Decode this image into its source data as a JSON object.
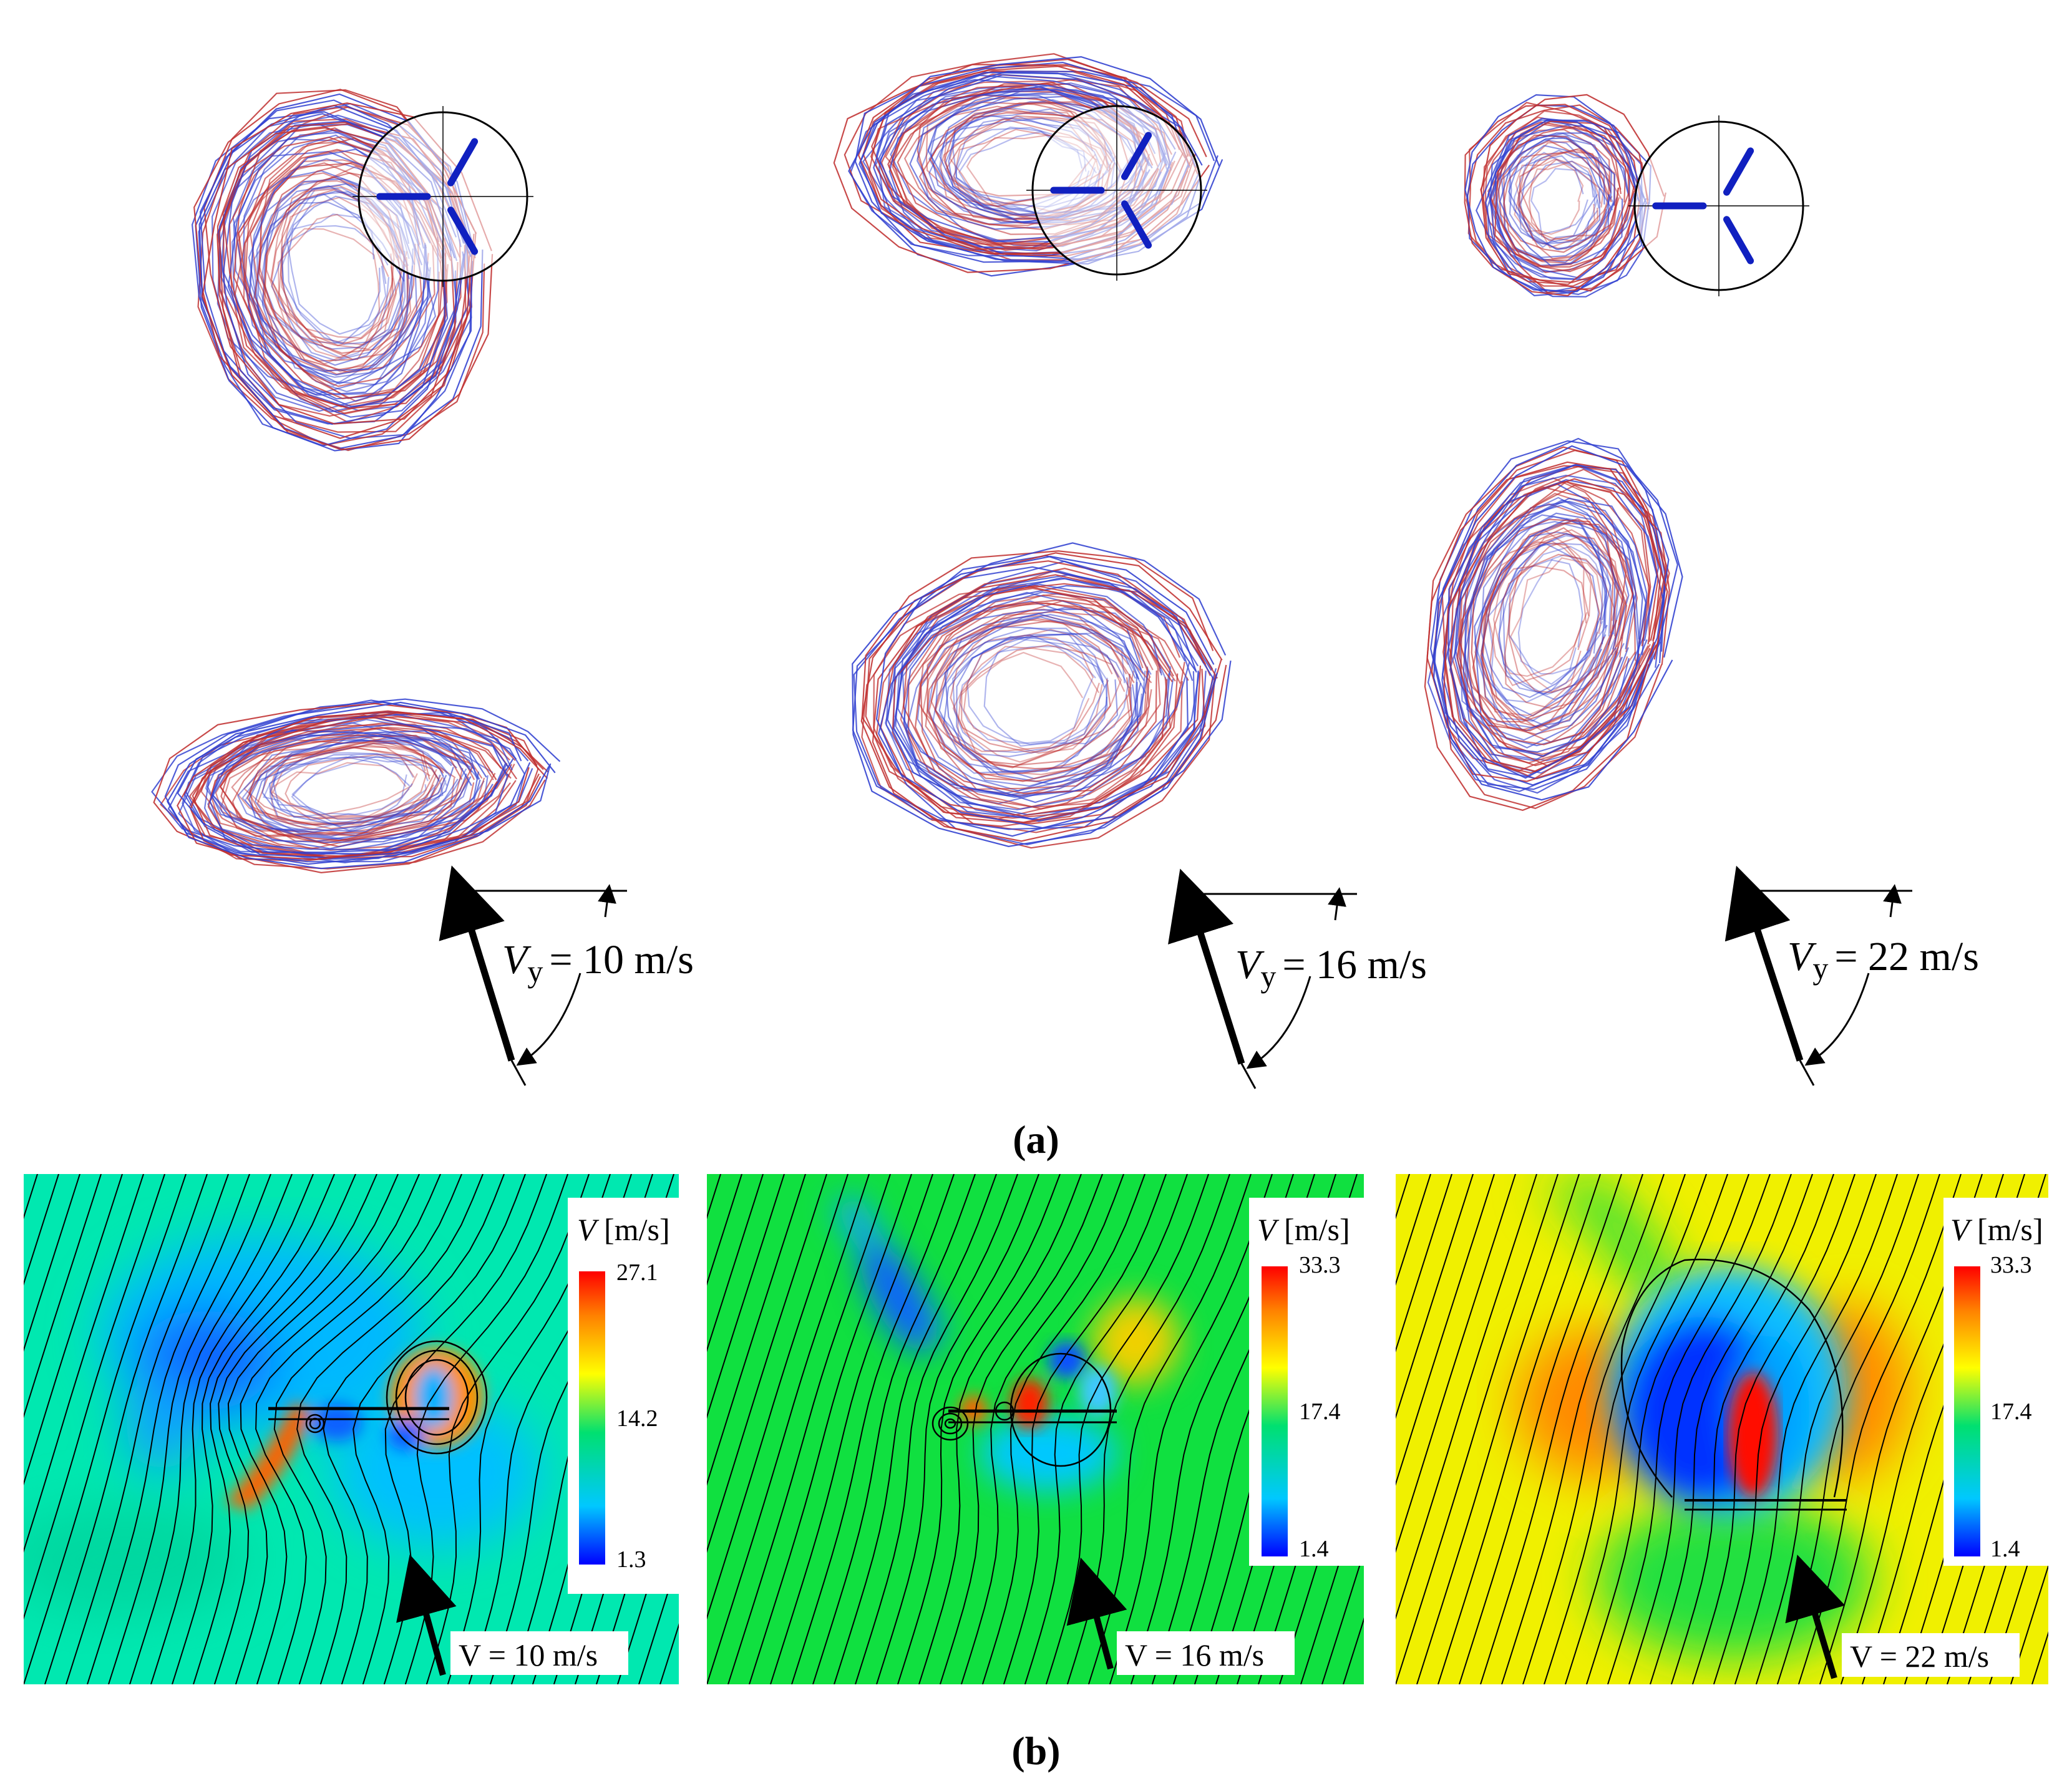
{
  "part_a": {
    "caption": "(a)",
    "panels": [
      {
        "speed_label": "V",
        "speed_sub": "y",
        "speed_value": "= 10 m/s"
      },
      {
        "speed_label": "V",
        "speed_sub": "y",
        "speed_value": "= 16 m/s"
      },
      {
        "speed_label": "V",
        "speed_sub": "y",
        "speed_value": "= 22 m/s"
      }
    ],
    "wire_colors": {
      "red": "#c03030",
      "blue": "#3040d0"
    }
  },
  "part_b": {
    "caption": "(b)",
    "panels": [
      {
        "legend_title_var": "V",
        "legend_title_unit": "[m/s]",
        "max": "27.1",
        "mid": "14.2",
        "min": "1.3",
        "speed_label": "V = 10 m/s"
      },
      {
        "legend_title_var": "V",
        "legend_title_unit": "[m/s]",
        "max": "33.3",
        "mid": "17.4",
        "min": "1.4",
        "speed_label": "V = 16 m/s"
      },
      {
        "legend_title_var": "V",
        "legend_title_unit": "[m/s]",
        "max": "33.3",
        "mid": "17.4",
        "min": "1.4",
        "speed_label": "V = 22 m/s"
      }
    ],
    "colormap": [
      "#0000ff",
      "#00c8ff",
      "#00e070",
      "#ffff00",
      "#ff8000",
      "#ff0000"
    ]
  }
}
